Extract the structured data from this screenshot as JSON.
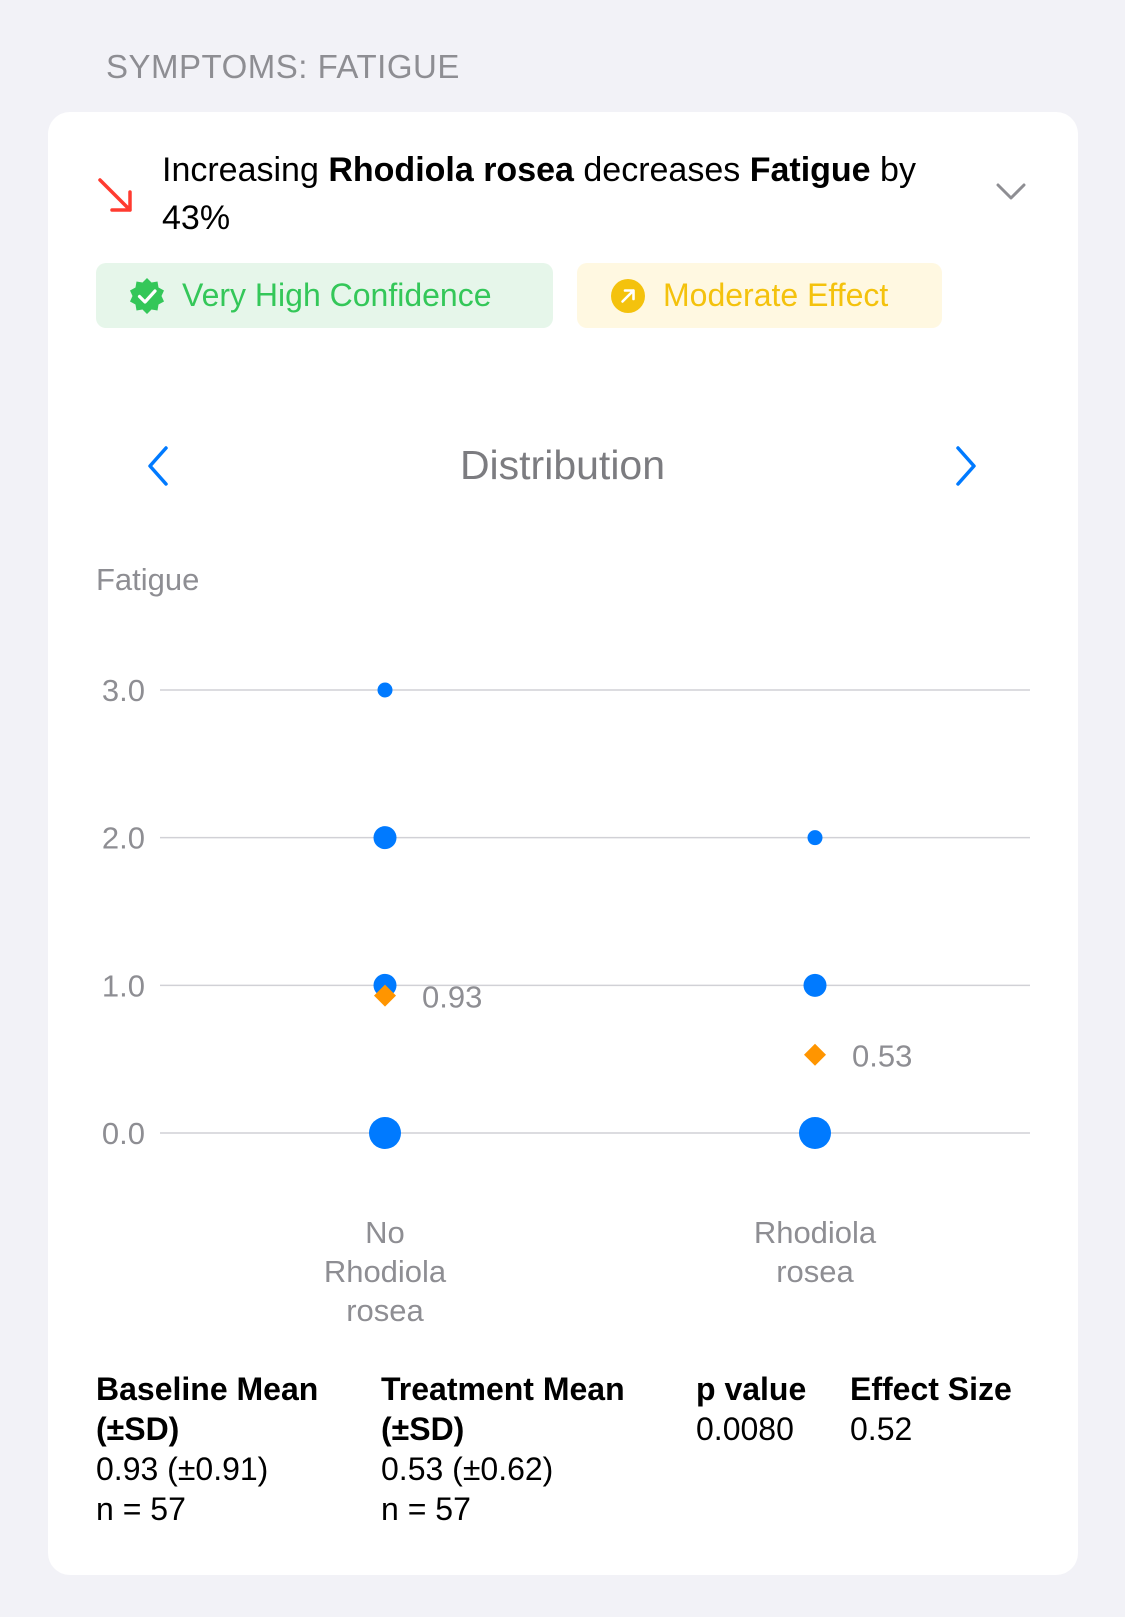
{
  "section": {
    "title": "SYMPTOMS: FATIGUE"
  },
  "insight": {
    "prefix": "Increasing ",
    "treatment": "Rhodiola rosea",
    "verb": " decreases ",
    "outcome": "Fatigue",
    "suffix": " by 43%",
    "trend_icon": "arrow-down-right-icon",
    "trend_color": "#ff3b30",
    "expand_icon": "chevron-down-icon"
  },
  "badges": {
    "confidence": {
      "label": "Very High Confidence",
      "icon": "verified-check-icon",
      "color": "#34c759",
      "bg": "#e6f6ea"
    },
    "effect": {
      "label": "Moderate Effect",
      "icon": "arrow-up-right-circle-icon",
      "color": "#f4c20d",
      "bg": "#fff8e1"
    }
  },
  "chart_nav": {
    "title": "Distribution",
    "prev_icon": "chevron-left-icon",
    "next_icon": "chevron-right-icon",
    "accent": "#007aff"
  },
  "chart_data": {
    "type": "scatter",
    "ylabel": "Fatigue",
    "ylim": [
      0,
      3
    ],
    "yticks": [
      "3.0",
      "2.0",
      "1.0",
      "0.0"
    ],
    "categories": [
      {
        "label": "No\nRhodiola\nrosea",
        "mean": 0.93,
        "mean_label": "0.93",
        "points": [
          {
            "y": 3,
            "weight": 1
          },
          {
            "y": 2,
            "weight": 2
          },
          {
            "y": 1,
            "weight": 2
          },
          {
            "y": 0,
            "weight": 3
          }
        ]
      },
      {
        "label": "Rhodiola\nrosea",
        "mean": 0.53,
        "mean_label": "0.53",
        "points": [
          {
            "y": 2,
            "weight": 1
          },
          {
            "y": 1,
            "weight": 2
          },
          {
            "y": 0,
            "weight": 3
          }
        ]
      }
    ],
    "point_color": "#007aff",
    "mean_color": "#ff9500",
    "grid": true
  },
  "stats": {
    "baseline": {
      "header": "Baseline Mean\n(±SD)",
      "value": "0.93 (±0.91)",
      "n": "n = 57"
    },
    "treatment": {
      "header": "Treatment Mean\n(±SD)",
      "value": "0.53 (±0.62)",
      "n": "n = 57"
    },
    "p_value": {
      "header": "p value",
      "value": "0.0080"
    },
    "effect_size": {
      "header": "Effect Size",
      "value": "0.52"
    }
  }
}
